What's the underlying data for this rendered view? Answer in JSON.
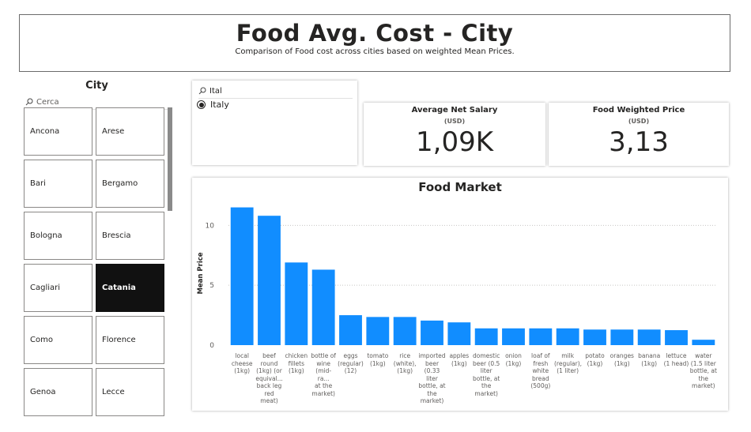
{
  "header": {
    "title": "Food Avg. Cost - City",
    "subtitle": "Comparison of Food cost across cities based on weighted Mean Prices."
  },
  "city_slicer": {
    "title": "City",
    "search_placeholder": "Cerca",
    "icon": "search-icon",
    "items": [
      {
        "label": "Ancona",
        "selected": false
      },
      {
        "label": "Arese",
        "selected": false
      },
      {
        "label": "Bari",
        "selected": false
      },
      {
        "label": "Bergamo",
        "selected": false
      },
      {
        "label": "Bologna",
        "selected": false
      },
      {
        "label": "Brescia",
        "selected": false
      },
      {
        "label": "Cagliari",
        "selected": false
      },
      {
        "label": "Catania",
        "selected": true
      },
      {
        "label": "Como",
        "selected": false
      },
      {
        "label": "Florence",
        "selected": false
      },
      {
        "label": "Genoa",
        "selected": false
      },
      {
        "label": "Lecce",
        "selected": false
      }
    ]
  },
  "country_slicer": {
    "search_value": "Ital",
    "option": "Italy",
    "option_selected": true
  },
  "kpis": {
    "salary": {
      "title": "Average Net Salary",
      "unit": "(USD)",
      "value": "1,09K"
    },
    "food_price": {
      "title": "Food Weighted Price",
      "unit": "(USD)",
      "value": "3,13"
    }
  },
  "colors": {
    "bar": "#118dff",
    "selected_tile": "#111111"
  },
  "chart_data": {
    "type": "bar",
    "title": "Food Market",
    "ylabel": "Mean Price",
    "xlabel": "",
    "ylim": [
      0,
      12
    ],
    "yticks": [
      0,
      5,
      10
    ],
    "grid": true,
    "categories": [
      "local cheese (1kg)",
      "beef round (1kg) (or equival... back leg red meat)",
      "chicken fillets (1kg)",
      "bottle of wine (mid-ra... at the market)",
      "eggs (regular) (12)",
      "tomato (1kg)",
      "rice (white), (1kg)",
      "imported beer (0.33 liter bottle, at the market)",
      "apples (1kg)",
      "domestic beer (0.5 liter bottle, at the market)",
      "onion (1kg)",
      "loaf of fresh white bread (500g)",
      "milk (regular), (1 liter)",
      "potato (1kg)",
      "oranges (1kg)",
      "banana (1kg)",
      "lettuce (1 head)",
      "water (1.5 liter bottle, at the market)"
    ],
    "category_lines": [
      [
        "local",
        "cheese",
        "(1kg)"
      ],
      [
        "beef",
        "round",
        "(1kg) (or",
        "equival...",
        "back leg",
        "red",
        "meat)"
      ],
      [
        "chicken",
        "fillets",
        "(1kg)"
      ],
      [
        "bottle of",
        "wine",
        "(mid-ra...",
        "at the",
        "market)"
      ],
      [
        "eggs",
        "(regular)",
        "(12)"
      ],
      [
        "tomato",
        "(1kg)"
      ],
      [
        "rice",
        "(white),",
        "(1kg)"
      ],
      [
        "imported",
        "beer",
        "(0.33",
        "liter",
        "bottle, at",
        "the",
        "market)"
      ],
      [
        "apples",
        "(1kg)"
      ],
      [
        "domestic",
        "beer (0.5",
        "liter",
        "bottle, at",
        "the",
        "market)"
      ],
      [
        "onion",
        "(1kg)"
      ],
      [
        "loaf of",
        "fresh",
        "white",
        "bread",
        "(500g)"
      ],
      [
        "milk",
        "(regular),",
        "(1 liter)"
      ],
      [
        "potato",
        "(1kg)"
      ],
      [
        "oranges",
        "(1kg)"
      ],
      [
        "banana",
        "(1kg)"
      ],
      [
        "lettuce",
        "(1 head)"
      ],
      [
        "water",
        "(1.5 liter",
        "bottle, at",
        "the",
        "market)"
      ]
    ],
    "values": [
      11.5,
      10.8,
      6.9,
      6.3,
      2.5,
      2.35,
      2.35,
      2.05,
      1.9,
      1.4,
      1.4,
      1.4,
      1.4,
      1.3,
      1.3,
      1.3,
      1.25,
      0.45
    ]
  }
}
